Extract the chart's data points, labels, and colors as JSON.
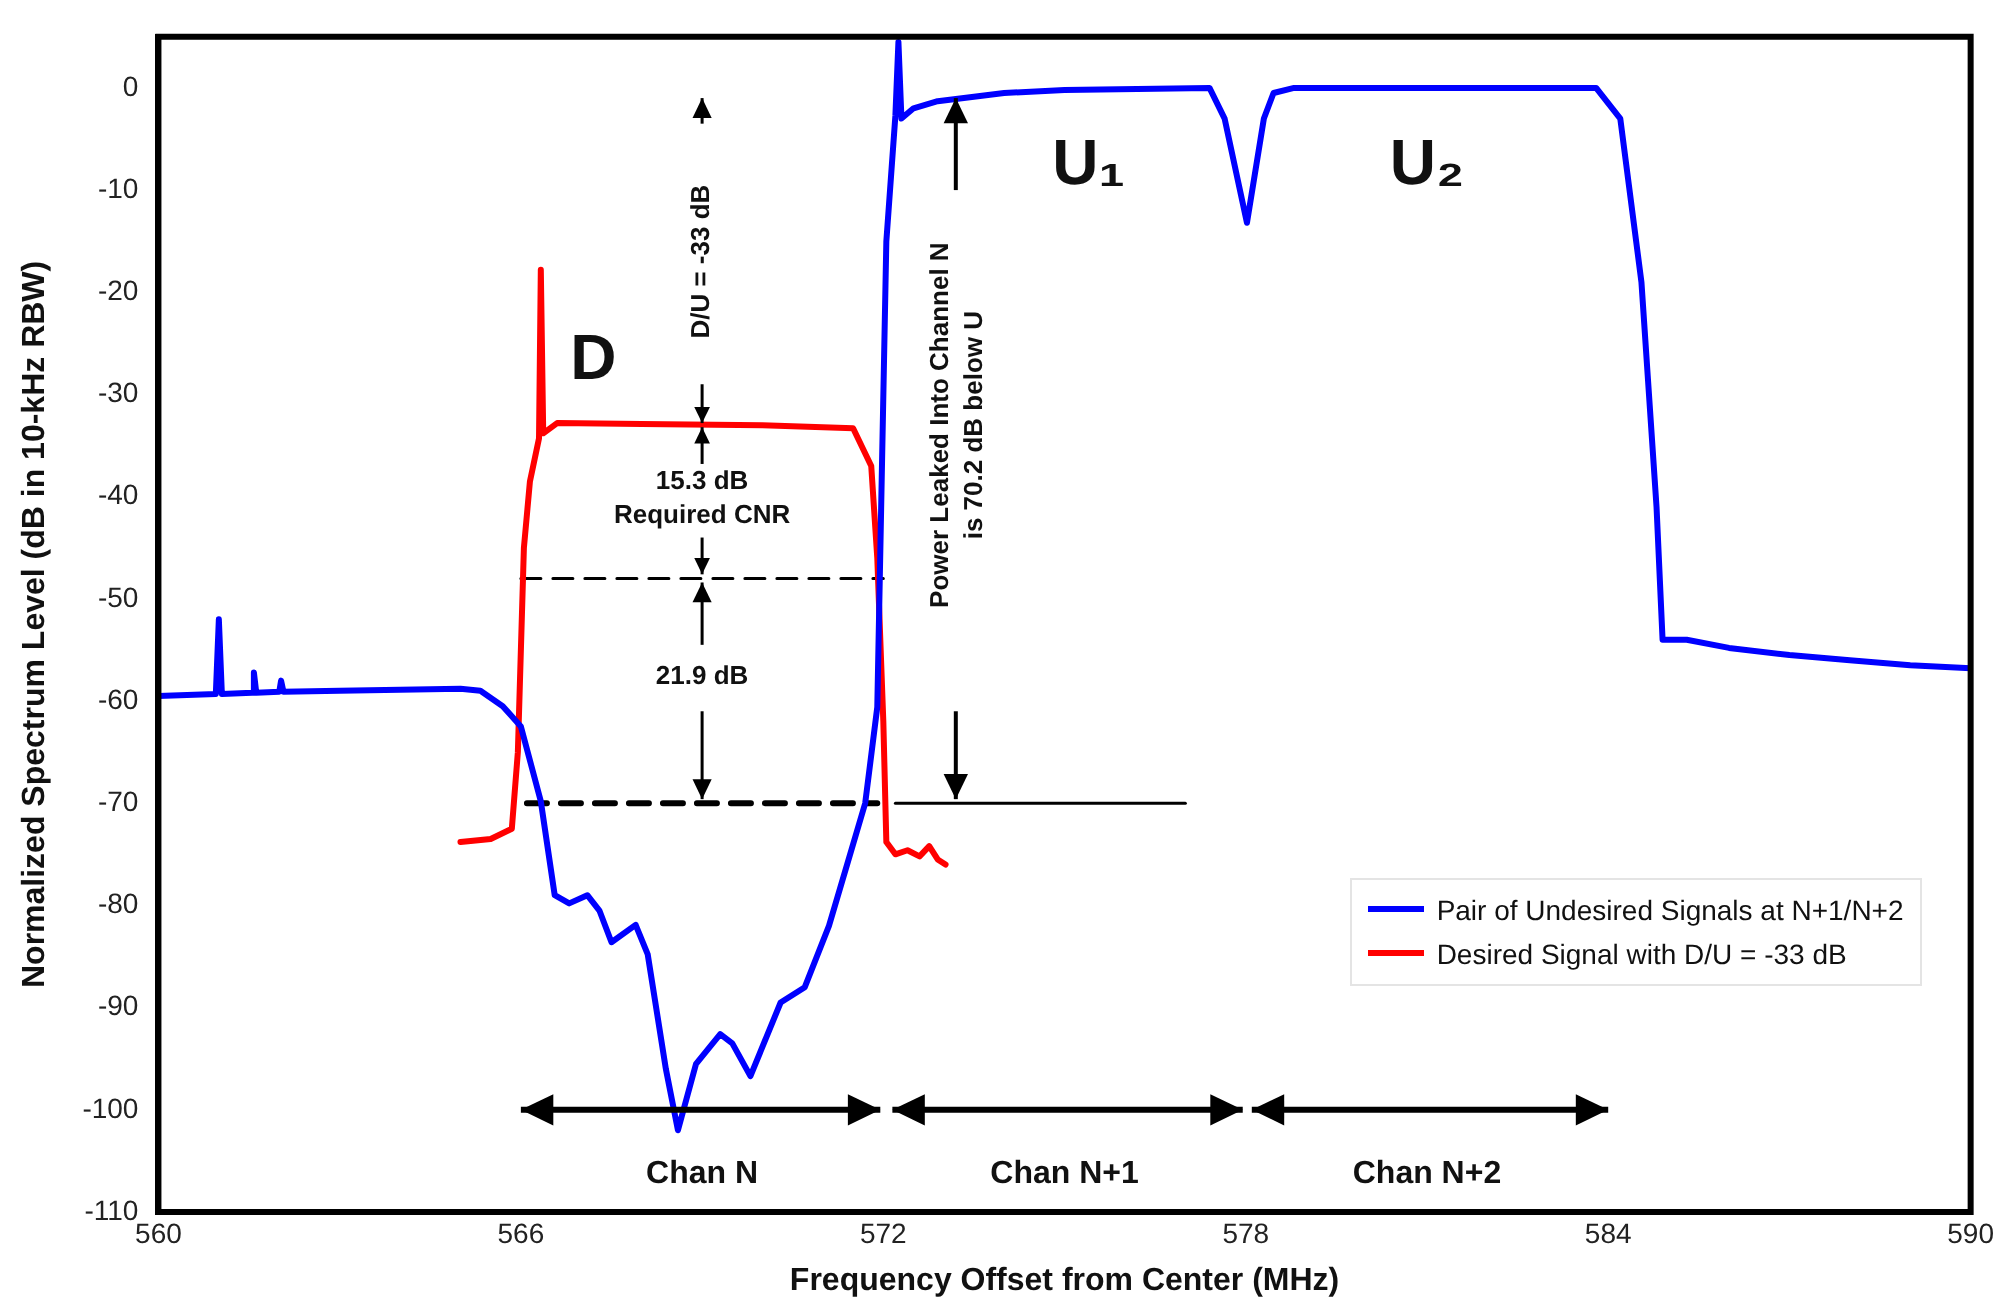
{
  "chart_data": {
    "type": "line",
    "xlabel": "Frequency Offset from Center (MHz)",
    "ylabel": "Normalized Spectrum Level (dB in 10-kHz RBW)",
    "xlim": [
      560,
      590
    ],
    "xticks": [
      560,
      566,
      572,
      578,
      584,
      590
    ],
    "ylim": [
      -110,
      5
    ],
    "yticks": [
      -110,
      -100,
      -90,
      -80,
      -70,
      -60,
      -50,
      -40,
      -30,
      -20,
      -10,
      0
    ],
    "grid": false,
    "legend": "bottom right",
    "marker": "none",
    "series": [
      {
        "name": "Pair of Undesired Signals at N+1/N+2",
        "color": "#0000ff",
        "x": [
          560,
          560.95,
          561.0,
          561.05,
          561.55,
          561.58,
          561.62,
          562.0,
          562.03,
          562.07,
          563,
          564,
          565,
          565.33,
          565.7,
          566,
          566.33,
          566.56,
          566.8,
          567.1,
          567.3,
          567.5,
          567.9,
          568.1,
          568.4,
          568.6,
          568.9,
          569.3,
          569.5,
          569.8,
          570.3,
          570.7,
          571.1,
          571.4,
          571.7,
          571.9,
          572.05,
          572.2,
          572.25,
          572.3,
          572.5,
          572.9,
          574,
          575,
          577.4,
          577.65,
          578.02,
          578.3,
          578.46,
          578.8,
          580,
          582,
          583.8,
          584.2,
          584.55,
          584.8,
          584.9,
          585.3,
          586,
          587,
          588,
          589,
          590
        ],
        "values": [
          -59.5,
          -59.3,
          -52,
          -59.3,
          -59.2,
          -57.2,
          -59.2,
          -59.1,
          -58,
          -59.1,
          -59,
          -58.9,
          -58.8,
          -59,
          -60.5,
          -62.5,
          -69.8,
          -79,
          -79.8,
          -79,
          -80.5,
          -83.6,
          -81.9,
          -84.8,
          -96,
          -102,
          -95.5,
          -92.6,
          -93.5,
          -96.7,
          -89.5,
          -88,
          -82,
          -76,
          -70,
          -60.6,
          -15,
          -2.7,
          4.5,
          -3,
          -2,
          -1.3,
          -0.5,
          -0.2,
          0,
          -3,
          -13.2,
          -3,
          -0.5,
          0,
          0,
          0,
          0,
          -3,
          -19,
          -41,
          -54,
          -54,
          -54.8,
          -55.5,
          -56,
          -56.5,
          -56.8
        ]
      },
      {
        "name": "Desired Signal with D/U = -33 dB",
        "color": "#ff0000",
        "x": [
          565.0,
          565.5,
          565.85,
          565.95,
          566.05,
          566.15,
          566.3,
          566.33,
          566.37,
          566.6,
          568,
          570,
          571.5,
          571.8,
          571.9,
          572.0,
          572.05,
          572.2,
          572.4,
          572.6,
          572.76,
          572.9,
          573.03
        ],
        "values": [
          -73.8,
          -73.5,
          -72.5,
          -65,
          -45,
          -38.5,
          -34.3,
          -17.8,
          -33.8,
          -32.8,
          -32.9,
          -33,
          -33.3,
          -37,
          -46,
          -62,
          -73.8,
          -75,
          -74.6,
          -75.2,
          -74.2,
          -75.5,
          -76
        ]
      },
      {
        "color": "#000000",
        "line_style": "dashed",
        "x": [
          566.1,
          571.9
        ],
        "values": [
          -70,
          -70
        ]
      },
      {
        "color": "#000000",
        "line_style": "dashed",
        "x": [
          566.0,
          572.0
        ],
        "values": [
          -48,
          -48
        ]
      },
      {
        "color": "#000000",
        "line_style": "solid",
        "x": [
          572.2,
          577.0
        ],
        "values": [
          -70,
          -70
        ]
      }
    ],
    "annotations": [
      "D",
      "U₁",
      "U₂",
      "D/U = -33 dB",
      "15.3 dB\nRequired CNR",
      {
        "text": "21.9 dB",
        "x": 569.0,
        "y": -70
      },
      "Power Leaked Into Channel N\nis 70.2 dB below U",
      "Chan N",
      "Chan N+1",
      "Chan N+2"
    ]
  }
}
